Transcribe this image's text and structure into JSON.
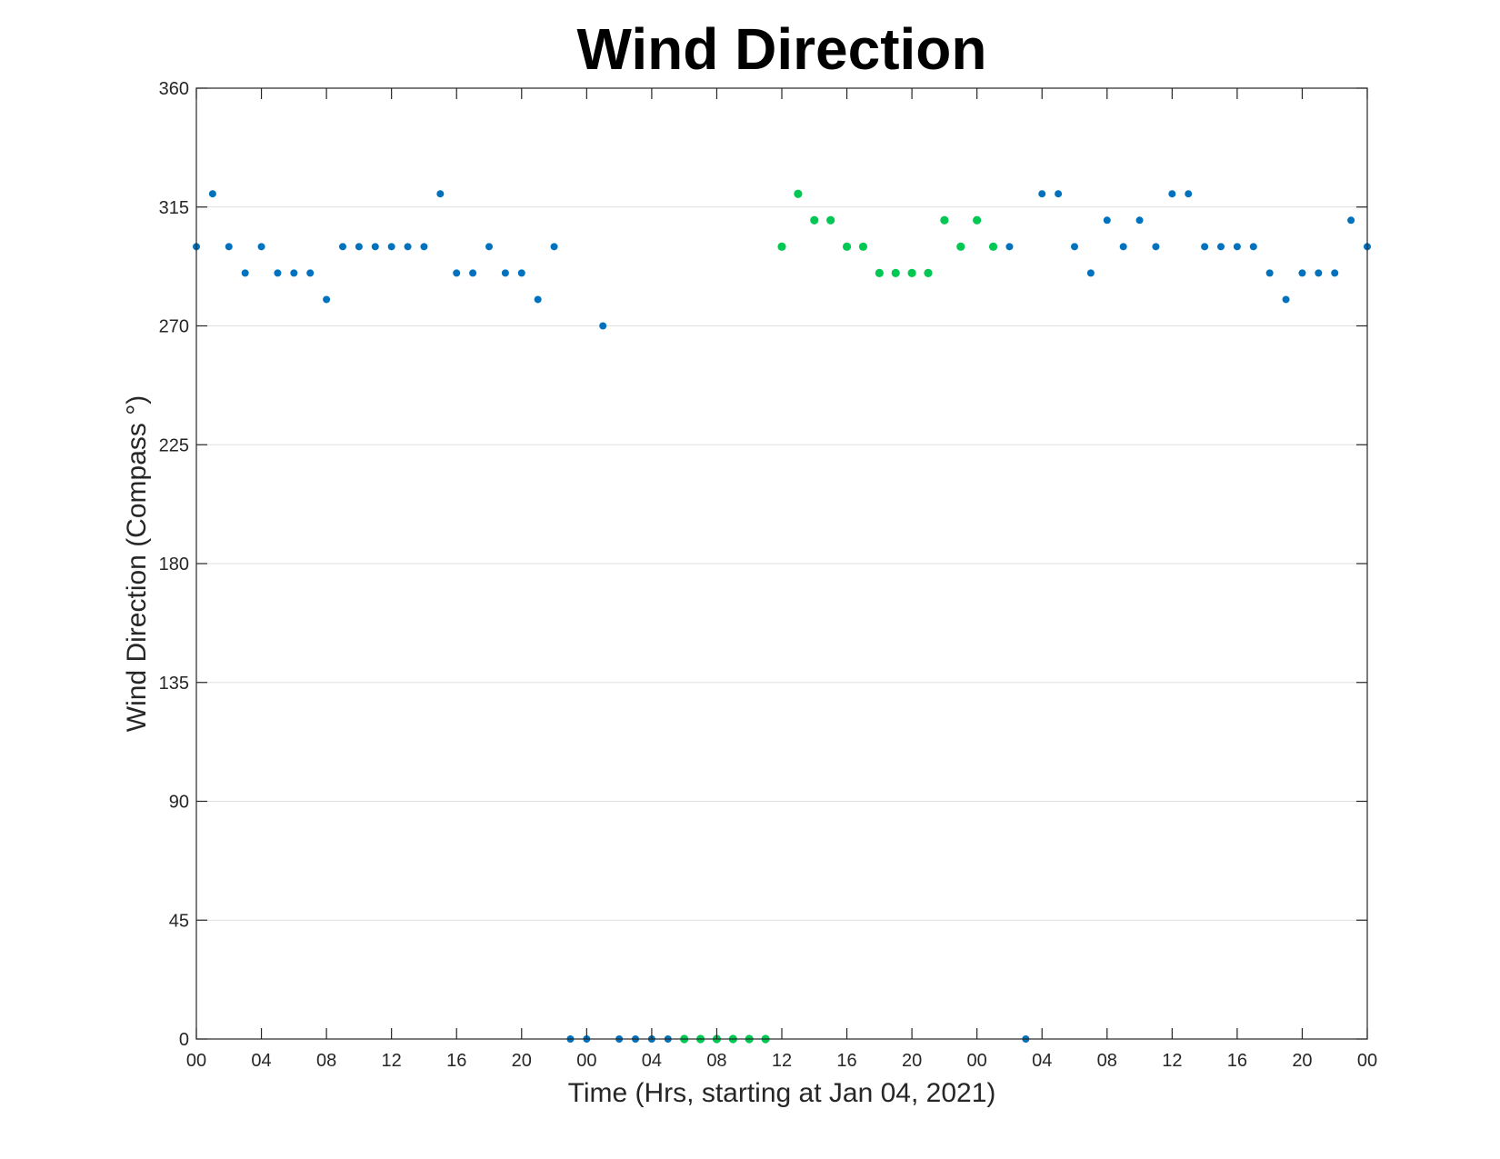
{
  "chart_data": {
    "type": "scatter",
    "title": "Wind Direction",
    "xlabel": "Time (Hrs, starting at Jan 04, 2021)",
    "ylabel": "Wind Direction (Compass °)",
    "ylim": [
      0,
      360
    ],
    "y_ticks": [
      0,
      45,
      90,
      135,
      180,
      225,
      270,
      315,
      360
    ],
    "xlim_hours": [
      0,
      72
    ],
    "x_ticks_hours": [
      0,
      4,
      8,
      12,
      16,
      20,
      24,
      28,
      32,
      36,
      40,
      44,
      48,
      52,
      56,
      60,
      64,
      68,
      72
    ],
    "x_tick_labels": [
      "00",
      "04",
      "08",
      "12",
      "16",
      "20",
      "00",
      "04",
      "08",
      "12",
      "16",
      "20",
      "00",
      "04",
      "08",
      "12",
      "16",
      "20",
      "00"
    ],
    "grid": "y-only",
    "colors": {
      "blue": "#0072bd",
      "green": "#00c853"
    },
    "series": [
      {
        "color": "#0072bd",
        "points": [
          [
            0,
            300
          ],
          [
            1,
            320
          ],
          [
            2,
            300
          ],
          [
            3,
            290
          ],
          [
            4,
            300
          ],
          [
            5,
            290
          ],
          [
            6,
            290
          ],
          [
            7,
            290
          ],
          [
            8,
            280
          ],
          [
            9,
            300
          ],
          [
            10,
            300
          ],
          [
            11,
            300
          ],
          [
            12,
            300
          ],
          [
            13,
            300
          ],
          [
            14,
            300
          ],
          [
            15,
            320
          ],
          [
            16,
            290
          ],
          [
            17,
            290
          ],
          [
            18,
            300
          ],
          [
            19,
            290
          ],
          [
            20,
            290
          ],
          [
            21,
            280
          ],
          [
            22,
            300
          ],
          [
            23,
            0
          ],
          [
            24,
            0
          ],
          [
            25,
            270
          ],
          [
            26,
            0
          ],
          [
            27,
            0
          ],
          [
            28,
            0
          ],
          [
            29,
            0
          ],
          [
            50,
            300
          ],
          [
            51,
            0
          ],
          [
            52,
            320
          ],
          [
            53,
            320
          ],
          [
            54,
            300
          ],
          [
            55,
            290
          ],
          [
            56,
            310
          ],
          [
            57,
            300
          ],
          [
            58,
            310
          ],
          [
            59,
            300
          ],
          [
            60,
            320
          ],
          [
            61,
            320
          ],
          [
            62,
            300
          ],
          [
            63,
            300
          ],
          [
            64,
            300
          ],
          [
            65,
            300
          ],
          [
            66,
            290
          ],
          [
            67,
            280
          ],
          [
            68,
            290
          ],
          [
            69,
            290
          ],
          [
            70,
            290
          ],
          [
            71,
            310
          ],
          [
            72,
            300
          ]
        ]
      },
      {
        "color": "#00c853",
        "points": [
          [
            30,
            0
          ],
          [
            31,
            0
          ],
          [
            32,
            0
          ],
          [
            33,
            0
          ],
          [
            34,
            0
          ],
          [
            35,
            0
          ],
          [
            36,
            300
          ],
          [
            37,
            320
          ],
          [
            38,
            310
          ],
          [
            39,
            310
          ],
          [
            40,
            300
          ],
          [
            41,
            300
          ],
          [
            42,
            290
          ],
          [
            43,
            290
          ],
          [
            44,
            290
          ],
          [
            45,
            290
          ],
          [
            46,
            310
          ],
          [
            47,
            300
          ],
          [
            48,
            310
          ],
          [
            49,
            300
          ]
        ]
      }
    ]
  }
}
